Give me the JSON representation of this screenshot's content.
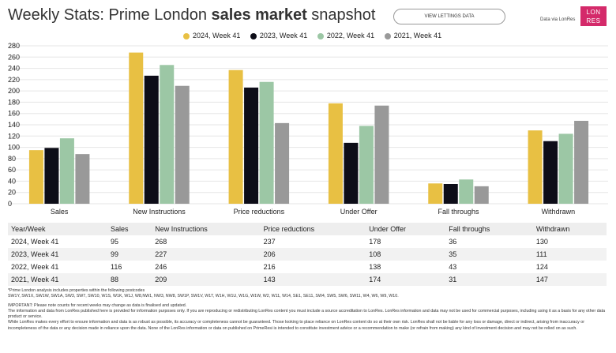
{
  "header": {
    "title_pre": "Weekly Stats: Prime London ",
    "title_bold": "sales market",
    "title_post": " snapshot",
    "button_label": "VIEW LETTINGS DATA",
    "source_text": "Data via LonRes",
    "logo_line1": "LON",
    "logo_line2": "RES"
  },
  "chart_data": {
    "type": "bar",
    "categories": [
      "Sales",
      "New Instructions",
      "Price reductions",
      "Under Offer",
      "Fall throughs",
      "Withdrawn"
    ],
    "series": [
      {
        "name": "2024, Week 41",
        "color": "#e8c043",
        "values": [
          95,
          268,
          237,
          178,
          36,
          130
        ]
      },
      {
        "name": "2023, Week 41",
        "color": "#0d0d18",
        "values": [
          99,
          227,
          206,
          108,
          35,
          111
        ]
      },
      {
        "name": "2022, Week 41",
        "color": "#9cc7a5",
        "values": [
          116,
          246,
          216,
          138,
          43,
          124
        ]
      },
      {
        "name": "2021, Week 41",
        "color": "#999999",
        "values": [
          88,
          209,
          143,
          174,
          31,
          147
        ]
      }
    ],
    "ylim": [
      0,
      280
    ],
    "yticks": [
      0,
      20,
      40,
      60,
      80,
      100,
      120,
      140,
      160,
      180,
      200,
      220,
      240,
      260,
      280
    ],
    "grid": true,
    "legend_position": "top"
  },
  "table": {
    "headers": [
      "Year/Week",
      "Sales",
      "New Instructions",
      "Price reductions",
      "Under Offer",
      "Fall throughs",
      "Withdrawn"
    ],
    "rows": [
      [
        "2024, Week 41",
        "95",
        "268",
        "237",
        "178",
        "36",
        "130"
      ],
      [
        "2023, Week 41",
        "99",
        "227",
        "206",
        "108",
        "35",
        "111"
      ],
      [
        "2022, Week 41",
        "116",
        "246",
        "216",
        "138",
        "43",
        "124"
      ],
      [
        "2021, Week 41",
        "88",
        "209",
        "143",
        "174",
        "31",
        "147"
      ]
    ]
  },
  "notes": {
    "postcodes_intro": "*Prime London analysis includes properties within the following postcodes",
    "postcodes_list": "SW1Y, SW1X, SW1W, SW1A, SW3, SW7, SW10, W1S, W1K, W1J, W8,NW1, NW3, NW8, SW1P, SW1V, W1T, W1H, W1U, W1G, W1W, W2, W11, W14, SE1, SE11, SW4, SW5, SW6, SW11, W4, W6, W9, W10.",
    "important": "IMPORTANT: Please note counts for recent weeks may change as data is finalised and updated.",
    "info_line": "The information and data from LonRes published here is provided for information purposes only. If you are reproducing or redistributing LonRes content you must include a source accreditation to LonRes. LonRes information and data may not be used for commercial purposes, including using it as a basis for any other data product or service.",
    "disclaimer": "While LonRes makes every effort to ensure information and data is as robust as possible, its accuracy or completeness cannot be guaranteed. Those looking to place reliance on LonRes content do so at their own risk. LonRes shall not be liable for any loss or damage, direct or indirect, arising from inaccuracy or incompleteness of the data or any decision made in reliance upon the data. None of the LonRes information or data on published on PrimeResi is intended to constitute investment advice or a recommendation to make (or refrain from making) any kind of investment decision and may not be relied on as such."
  }
}
